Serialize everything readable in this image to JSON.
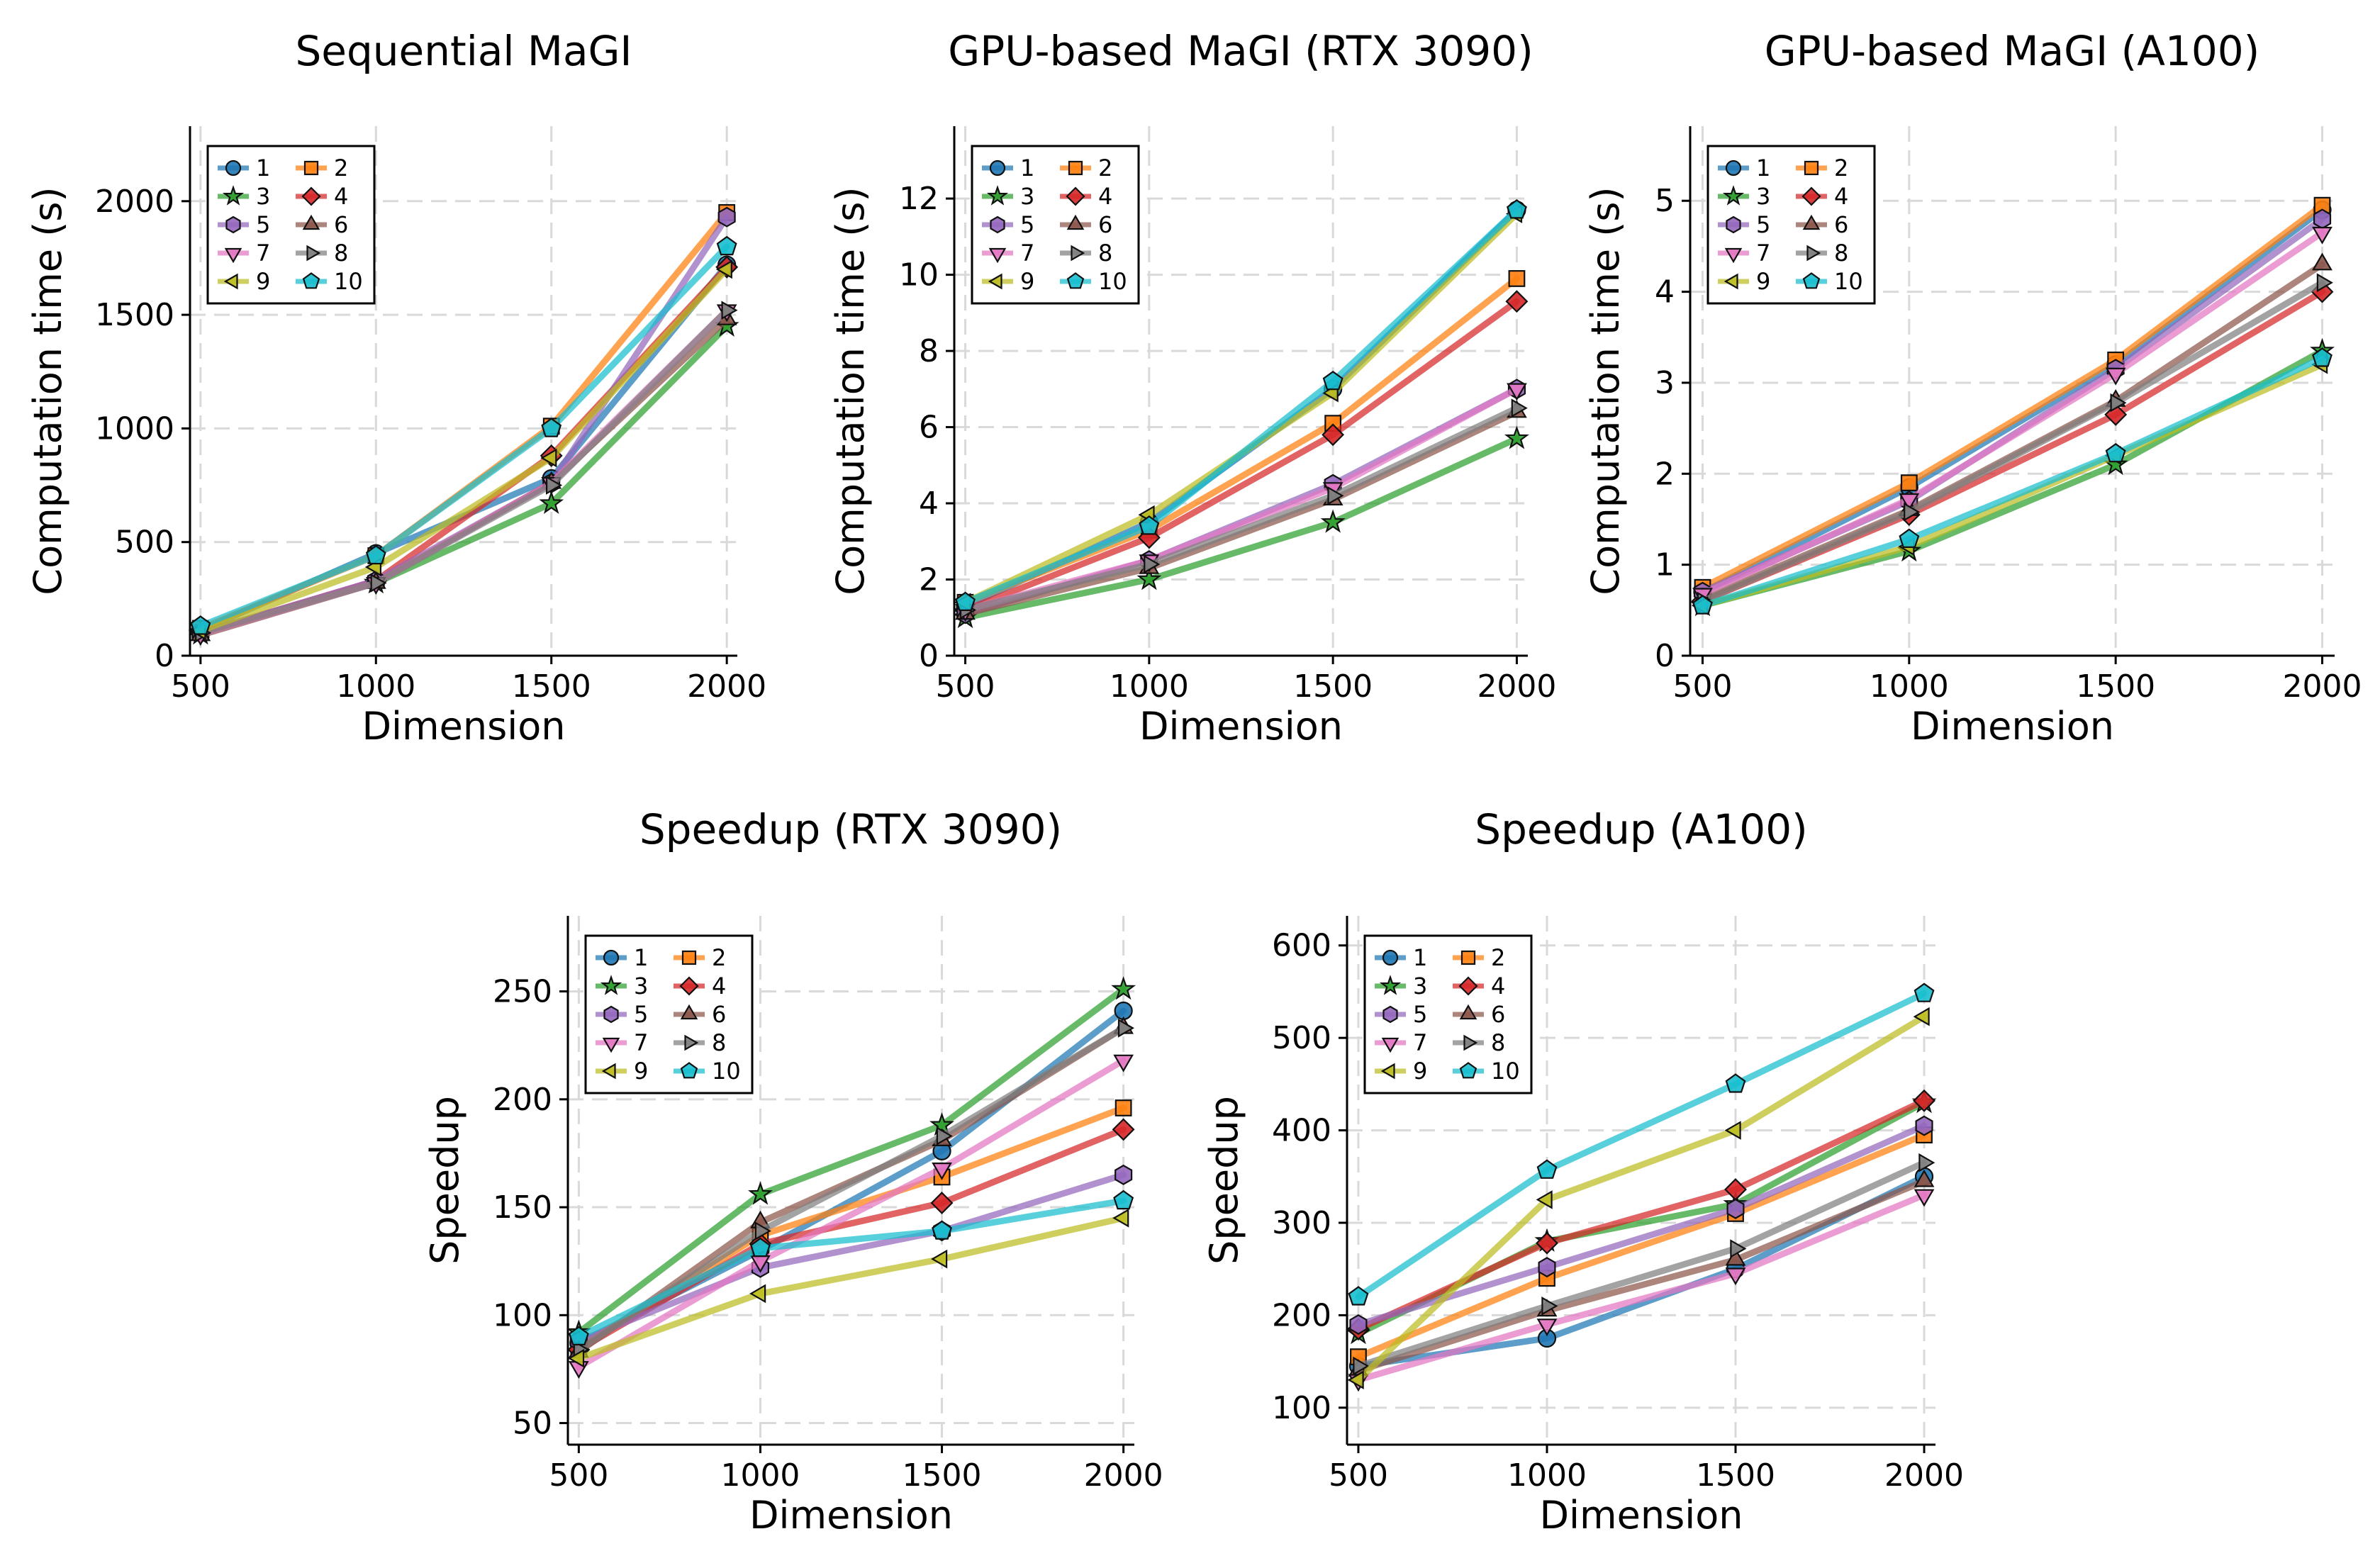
{
  "chart_data": [
    {
      "type": "line",
      "title": "Sequential MaGI",
      "xlabel": "Dimension",
      "ylabel": "Computation time (s)",
      "x": [
        500,
        1000,
        1500,
        2000
      ],
      "xticks": [
        "500",
        "1000",
        "1500",
        "2000"
      ],
      "xlim": [
        470,
        2030
      ],
      "ylim": [
        0,
        2330
      ],
      "yticks": [
        "0",
        "500",
        "1000",
        "1500",
        "2000"
      ],
      "ytick_values": [
        0,
        500,
        1000,
        1500,
        2000
      ],
      "legend_position": "top-left",
      "series": [
        {
          "name": "1",
          "values": [
            110,
            450,
            780,
            1720
          ]
        },
        {
          "name": "2",
          "values": [
            120,
            440,
            1010,
            1950
          ]
        },
        {
          "name": "3",
          "values": [
            95,
            320,
            670,
            1450
          ]
        },
        {
          "name": "4",
          "values": [
            100,
            330,
            880,
            1710
          ]
        },
        {
          "name": "5",
          "values": [
            100,
            330,
            760,
            1930
          ]
        },
        {
          "name": "6",
          "values": [
            90,
            320,
            760,
            1480
          ]
        },
        {
          "name": "7",
          "values": [
            95,
            320,
            760,
            1520
          ]
        },
        {
          "name": "8",
          "values": [
            100,
            320,
            750,
            1520
          ]
        },
        {
          "name": "9",
          "values": [
            110,
            390,
            870,
            1700
          ]
        },
        {
          "name": "10",
          "values": [
            130,
            440,
            1000,
            1800
          ]
        }
      ]
    },
    {
      "type": "line",
      "title": "GPU-based MaGI (RTX 3090)",
      "xlabel": "Dimension",
      "ylabel": "Computation time (s)",
      "x": [
        500,
        1000,
        1500,
        2000
      ],
      "xticks": [
        "500",
        "1000",
        "1500",
        "2000"
      ],
      "xlim": [
        470,
        2030
      ],
      "ylim": [
        0,
        13.9
      ],
      "yticks": [
        "0",
        "2",
        "4",
        "6",
        "8",
        "10",
        "12"
      ],
      "ytick_values": [
        0,
        2,
        4,
        6,
        8,
        10,
        12
      ],
      "legend_position": "top-left",
      "series": [
        {
          "name": "1",
          "values": [
            1.3,
            3.5,
            7.0,
            11.7
          ]
        },
        {
          "name": "2",
          "values": [
            1.4,
            3.3,
            6.1,
            9.9
          ]
        },
        {
          "name": "3",
          "values": [
            1.0,
            2.0,
            3.5,
            5.7
          ]
        },
        {
          "name": "4",
          "values": [
            1.2,
            3.1,
            5.8,
            9.3
          ]
        },
        {
          "name": "5",
          "values": [
            1.1,
            2.5,
            4.5,
            7.0
          ]
        },
        {
          "name": "6",
          "values": [
            1.1,
            2.3,
            4.1,
            6.4
          ]
        },
        {
          "name": "7",
          "values": [
            1.2,
            2.5,
            4.4,
            7.0
          ]
        },
        {
          "name": "8",
          "values": [
            1.2,
            2.4,
            4.2,
            6.5
          ]
        },
        {
          "name": "9",
          "values": [
            1.4,
            3.7,
            6.9,
            11.6
          ]
        },
        {
          "name": "10",
          "values": [
            1.4,
            3.4,
            7.2,
            11.7
          ]
        }
      ]
    },
    {
      "type": "line",
      "title": "GPU-based MaGI (A100)",
      "xlabel": "Dimension",
      "ylabel": "Computation time (s)",
      "x": [
        500,
        1000,
        1500,
        2000
      ],
      "xticks": [
        "500",
        "1000",
        "1500",
        "2000"
      ],
      "xlim": [
        470,
        2030
      ],
      "ylim": [
        0,
        5.82
      ],
      "yticks": [
        "0",
        "1",
        "2",
        "3",
        "4",
        "5"
      ],
      "ytick_values": [
        0,
        1,
        2,
        3,
        4,
        5
      ],
      "legend_position": "top-left",
      "series": [
        {
          "name": "1",
          "values": [
            0.7,
            1.85,
            3.2,
            4.9
          ]
        },
        {
          "name": "2",
          "values": [
            0.75,
            1.9,
            3.25,
            4.95
          ]
        },
        {
          "name": "3",
          "values": [
            0.55,
            1.15,
            2.1,
            3.35
          ]
        },
        {
          "name": "4",
          "values": [
            0.6,
            1.55,
            2.65,
            4.0
          ]
        },
        {
          "name": "5",
          "values": [
            0.7,
            1.7,
            3.15,
            4.8
          ]
        },
        {
          "name": "6",
          "values": [
            0.62,
            1.6,
            2.8,
            4.3
          ]
        },
        {
          "name": "7",
          "values": [
            0.68,
            1.72,
            3.1,
            4.65
          ]
        },
        {
          "name": "8",
          "values": [
            0.6,
            1.58,
            2.78,
            4.1
          ]
        },
        {
          "name": "9",
          "values": [
            0.55,
            1.2,
            2.2,
            3.2
          ]
        },
        {
          "name": "10",
          "values": [
            0.55,
            1.28,
            2.22,
            3.27
          ]
        }
      ]
    },
    {
      "type": "line",
      "title": "Speedup (RTX 3090)",
      "xlabel": "Dimension",
      "ylabel": "Speedup",
      "x": [
        500,
        1000,
        1500,
        2000
      ],
      "xticks": [
        "500",
        "1000",
        "1500",
        "2000"
      ],
      "xlim": [
        470,
        2030
      ],
      "ylim": [
        40,
        285
      ],
      "yticks": [
        "50",
        "100",
        "150",
        "200",
        "250"
      ],
      "ytick_values": [
        50,
        100,
        150,
        200,
        250
      ],
      "legend_position": "top-left",
      "series": [
        {
          "name": "1",
          "values": [
            87,
            130,
            176,
            241
          ]
        },
        {
          "name": "2",
          "values": [
            85,
            137,
            164,
            196
          ]
        },
        {
          "name": "3",
          "values": [
            92,
            156,
            188,
            251
          ]
        },
        {
          "name": "4",
          "values": [
            84,
            133,
            152,
            186
          ]
        },
        {
          "name": "5",
          "values": [
            88,
            122,
            139,
            165
          ]
        },
        {
          "name": "6",
          "values": [
            83,
            143,
            181,
            233
          ]
        },
        {
          "name": "7",
          "values": [
            76,
            125,
            168,
            218
          ]
        },
        {
          "name": "8",
          "values": [
            84,
            139,
            183,
            233
          ]
        },
        {
          "name": "9",
          "values": [
            80,
            110,
            126,
            145
          ]
        },
        {
          "name": "10",
          "values": [
            90,
            131,
            139,
            153
          ]
        }
      ]
    },
    {
      "type": "line",
      "title": "Speedup (A100)",
      "xlabel": "Dimension",
      "ylabel": "Speedup",
      "x": [
        500,
        1000,
        1500,
        2000
      ],
      "xticks": [
        "500",
        "1000",
        "1500",
        "2000"
      ],
      "xlim": [
        470,
        2030
      ],
      "ylim": [
        60,
        632
      ],
      "yticks": [
        "100",
        "200",
        "300",
        "400",
        "500",
        "600"
      ],
      "ytick_values": [
        100,
        200,
        300,
        400,
        500,
        600
      ],
      "legend_position": "top-left",
      "series": [
        {
          "name": "1",
          "values": [
            145,
            175,
            250,
            350
          ]
        },
        {
          "name": "2",
          "values": [
            155,
            240,
            310,
            395
          ]
        },
        {
          "name": "3",
          "values": [
            180,
            280,
            320,
            430
          ]
        },
        {
          "name": "4",
          "values": [
            185,
            278,
            336,
            432
          ]
        },
        {
          "name": "5",
          "values": [
            190,
            252,
            315,
            405
          ]
        },
        {
          "name": "6",
          "values": [
            140,
            205,
            260,
            345
          ]
        },
        {
          "name": "7",
          "values": [
            130,
            190,
            245,
            330
          ]
        },
        {
          "name": "8",
          "values": [
            145,
            210,
            272,
            365
          ]
        },
        {
          "name": "9",
          "values": [
            130,
            325,
            400,
            523
          ]
        },
        {
          "name": "10",
          "values": [
            220,
            357,
            450,
            548
          ]
        }
      ]
    }
  ],
  "style": {
    "series_colors": [
      "#1f77b4",
      "#ff7f0e",
      "#2ca02c",
      "#d62728",
      "#9467bd",
      "#8c564b",
      "#e377c2",
      "#7f7f7f",
      "#bcbd22",
      "#17becf"
    ],
    "series_markers": [
      "circle",
      "square",
      "star",
      "diamond",
      "hexagon",
      "triangle-up",
      "triangle-down",
      "triangle-right",
      "triangle-left",
      "pentagon"
    ],
    "grid": true,
    "grid_style": "dashed"
  }
}
